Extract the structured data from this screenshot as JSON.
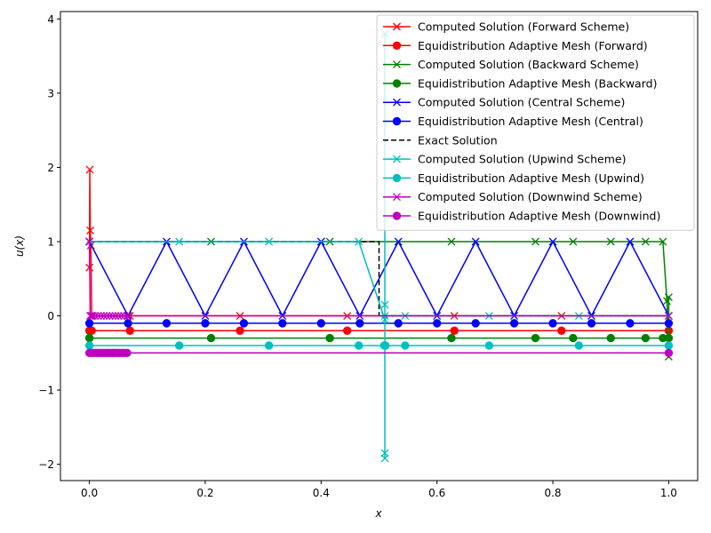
{
  "chart_data": {
    "type": "line",
    "xlabel": "x",
    "ylabel": "u(x)",
    "xlim": [
      -0.05,
      1.05
    ],
    "ylim": [
      -2.22,
      4.1
    ],
    "x_ticks": [
      0.0,
      0.2,
      0.4,
      0.6,
      0.8,
      1.0
    ],
    "x_tick_labels": [
      "0.0",
      "0.2",
      "0.4",
      "0.6",
      "0.8",
      "1.0"
    ],
    "y_ticks": [
      -2,
      -1,
      0,
      1,
      2,
      3,
      4
    ],
    "y_tick_labels": [
      "−2",
      "−1",
      "0",
      "1",
      "2",
      "3",
      "4"
    ],
    "grid": false,
    "legend_position": "top-right",
    "series": [
      {
        "name": "Computed Solution (Forward Scheme)",
        "color": "#ff0000",
        "marker": "x",
        "dashed": false,
        "x": [
          0.0,
          0.0007,
          0.0015,
          0.0025,
          0.004,
          0.07,
          0.26,
          0.445,
          0.63,
          0.815,
          1.0
        ],
        "y": [
          0.65,
          1.97,
          1.15,
          0.95,
          0.0,
          0.0,
          0.0,
          0.0,
          0.0,
          0.0,
          0.0
        ]
      },
      {
        "name": "Equidistribution Adaptive Mesh (Forward)",
        "color": "#ff0000",
        "marker": "o",
        "dashed": false,
        "x": [
          0.0,
          0.002,
          0.004,
          0.07,
          0.26,
          0.445,
          0.63,
          0.815,
          1.0
        ],
        "y": [
          -0.2,
          -0.2,
          -0.2,
          -0.2,
          -0.2,
          -0.2,
          -0.2,
          -0.2,
          -0.2
        ]
      },
      {
        "name": "Computed Solution (Backward Scheme)",
        "color": "#008000",
        "marker": "x",
        "dashed": false,
        "x": [
          0.0,
          0.21,
          0.415,
          0.625,
          0.77,
          0.835,
          0.9,
          0.96,
          0.99,
          0.997,
          1.0,
          1.0
        ],
        "y": [
          1.0,
          1.0,
          1.0,
          1.0,
          1.0,
          1.0,
          1.0,
          1.0,
          1.0,
          0.2,
          -0.55,
          0.25
        ]
      },
      {
        "name": "Equidistribution Adaptive Mesh (Backward)",
        "color": "#008000",
        "marker": "o",
        "dashed": false,
        "x": [
          0.0,
          0.21,
          0.415,
          0.625,
          0.77,
          0.835,
          0.9,
          0.96,
          0.99,
          1.0
        ],
        "y": [
          -0.3,
          -0.3,
          -0.3,
          -0.3,
          -0.3,
          -0.3,
          -0.3,
          -0.3,
          -0.3,
          -0.3
        ]
      },
      {
        "name": "Computed Solution (Central Scheme)",
        "color": "#0000ff",
        "marker": "x",
        "dashed": false,
        "x": [
          0.0,
          0.0667,
          0.1333,
          0.2,
          0.2667,
          0.3333,
          0.4,
          0.4667,
          0.5333,
          0.6,
          0.6667,
          0.7333,
          0.8,
          0.8667,
          0.9333,
          1.0
        ],
        "y": [
          1,
          0,
          1,
          0,
          1,
          0,
          1,
          0,
          1,
          0,
          1,
          0,
          1,
          0,
          1,
          0
        ]
      },
      {
        "name": "Equidistribution Adaptive Mesh (Central)",
        "color": "#0000ff",
        "marker": "o",
        "dashed": false,
        "x": [
          0.0,
          0.0667,
          0.1333,
          0.2,
          0.2667,
          0.3333,
          0.4,
          0.4667,
          0.5333,
          0.6,
          0.6667,
          0.7333,
          0.8,
          0.8667,
          0.9333,
          1.0
        ],
        "y": [
          -0.1,
          -0.1,
          -0.1,
          -0.1,
          -0.1,
          -0.1,
          -0.1,
          -0.1,
          -0.1,
          -0.1,
          -0.1,
          -0.1,
          -0.1,
          -0.1,
          -0.1,
          -0.1
        ]
      },
      {
        "name": "Exact Solution",
        "color": "#000000",
        "marker": "none",
        "dashed": true,
        "x": [
          0.0,
          0.5,
          0.5,
          1.0
        ],
        "y": [
          1.0,
          1.0,
          0.0,
          0.0
        ]
      },
      {
        "name": "Computed Solution (Upwind Scheme)",
        "color": "#00bfbf",
        "marker": "x",
        "dashed": false,
        "x": [
          0.0,
          0.155,
          0.31,
          0.465,
          0.51,
          0.51,
          0.51,
          0.51,
          0.51,
          0.51,
          0.545,
          0.69,
          0.845,
          1.0
        ],
        "y": [
          1.0,
          1.0,
          1.0,
          1.0,
          -0.05,
          3.8,
          -1.85,
          -1.92,
          0.15,
          0.0,
          0.0,
          0.0,
          0.0,
          0.0
        ]
      },
      {
        "name": "Equidistribution Adaptive Mesh (Upwind)",
        "color": "#00bfbf",
        "marker": "o",
        "dashed": false,
        "x": [
          0.0,
          0.155,
          0.31,
          0.465,
          0.509,
          0.511,
          0.545,
          0.69,
          0.845,
          1.0
        ],
        "y": [
          -0.4,
          -0.4,
          -0.4,
          -0.4,
          -0.4,
          -0.4,
          -0.4,
          -0.4,
          -0.4,
          -0.4
        ]
      },
      {
        "name": "Computed Solution (Downwind Scheme)",
        "color": "#bf00bf",
        "marker": "x",
        "dashed": false,
        "x": [
          0.0,
          0.0013,
          0.003,
          0.006,
          0.01,
          0.015,
          0.02,
          0.025,
          0.03,
          0.035,
          0.04,
          0.045,
          0.05,
          0.055,
          0.06,
          0.065,
          1.0
        ],
        "y": [
          1.0,
          0.0,
          0.0,
          0.0,
          0.0,
          0.0,
          0.0,
          0.0,
          0.0,
          0.0,
          0.0,
          0.0,
          0.0,
          0.0,
          0.0,
          0.0,
          0.0
        ]
      },
      {
        "name": "Equidistribution Adaptive Mesh (Downwind)",
        "color": "#bf00bf",
        "marker": "o",
        "dashed": false,
        "x": [
          0.0,
          0.004,
          0.008,
          0.012,
          0.016,
          0.02,
          0.024,
          0.028,
          0.032,
          0.036,
          0.04,
          0.044,
          0.048,
          0.052,
          0.056,
          0.06,
          0.065,
          1.0
        ],
        "y": [
          -0.5,
          -0.5,
          -0.5,
          -0.5,
          -0.5,
          -0.5,
          -0.5,
          -0.5,
          -0.5,
          -0.5,
          -0.5,
          -0.5,
          -0.5,
          -0.5,
          -0.5,
          -0.5,
          -0.5,
          -0.5
        ]
      }
    ]
  }
}
